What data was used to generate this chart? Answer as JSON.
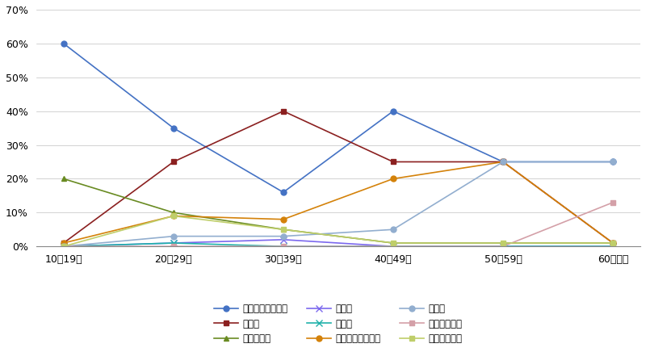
{
  "categories": [
    "10～19歳",
    "20～29歳",
    "30～39歳",
    "40～49歳",
    "50～59歳",
    "60歳以上"
  ],
  "series": [
    {
      "label": "就職・転職・転業",
      "values": [
        60,
        35,
        16,
        40,
        25,
        25
      ],
      "color": "#4472C4",
      "marker": "o",
      "markersize": 5
    },
    {
      "label": "転　勤",
      "values": [
        1,
        25,
        40,
        25,
        25,
        1
      ],
      "color": "#8B2020",
      "marker": "s",
      "markersize": 5
    },
    {
      "label": "退職・廃業",
      "values": [
        20,
        10,
        5,
        1,
        1,
        1
      ],
      "color": "#698B22",
      "marker": "^",
      "markersize": 5
    },
    {
      "label": "就　学",
      "values": [
        0,
        1,
        2,
        0,
        0,
        0
      ],
      "color": "#7B68EE",
      "marker": "x",
      "markersize": 6
    },
    {
      "label": "卒　業",
      "values": [
        0,
        1,
        0,
        0,
        0,
        0
      ],
      "color": "#20B2AA",
      "marker": "x",
      "markersize": 6
    },
    {
      "label": "結婚・離婚・縁組",
      "values": [
        1,
        9,
        8,
        20,
        25,
        1
      ],
      "color": "#D4820A",
      "marker": "o",
      "markersize": 5
    },
    {
      "label": "住　宅",
      "values": [
        0,
        3,
        3,
        5,
        25,
        25
      ],
      "color": "#92AECF",
      "marker": "o",
      "markersize": 5
    },
    {
      "label": "交通の利便性",
      "values": [
        0,
        0,
        0,
        0,
        0,
        13
      ],
      "color": "#D4A0A8",
      "marker": "s",
      "markersize": 5
    },
    {
      "label": "生活の利便性",
      "values": [
        0,
        9,
        5,
        1,
        1,
        1
      ],
      "color": "#BFCE6A",
      "marker": "s",
      "markersize": 5
    }
  ],
  "ylim": [
    0,
    70
  ],
  "yticks": [
    0,
    10,
    20,
    30,
    40,
    50,
    60,
    70
  ],
  "background_color": "#FFFFFF",
  "grid_color": "#C0C0C0",
  "legend_order": [
    0,
    1,
    2,
    3,
    4,
    5,
    6,
    7,
    8
  ]
}
